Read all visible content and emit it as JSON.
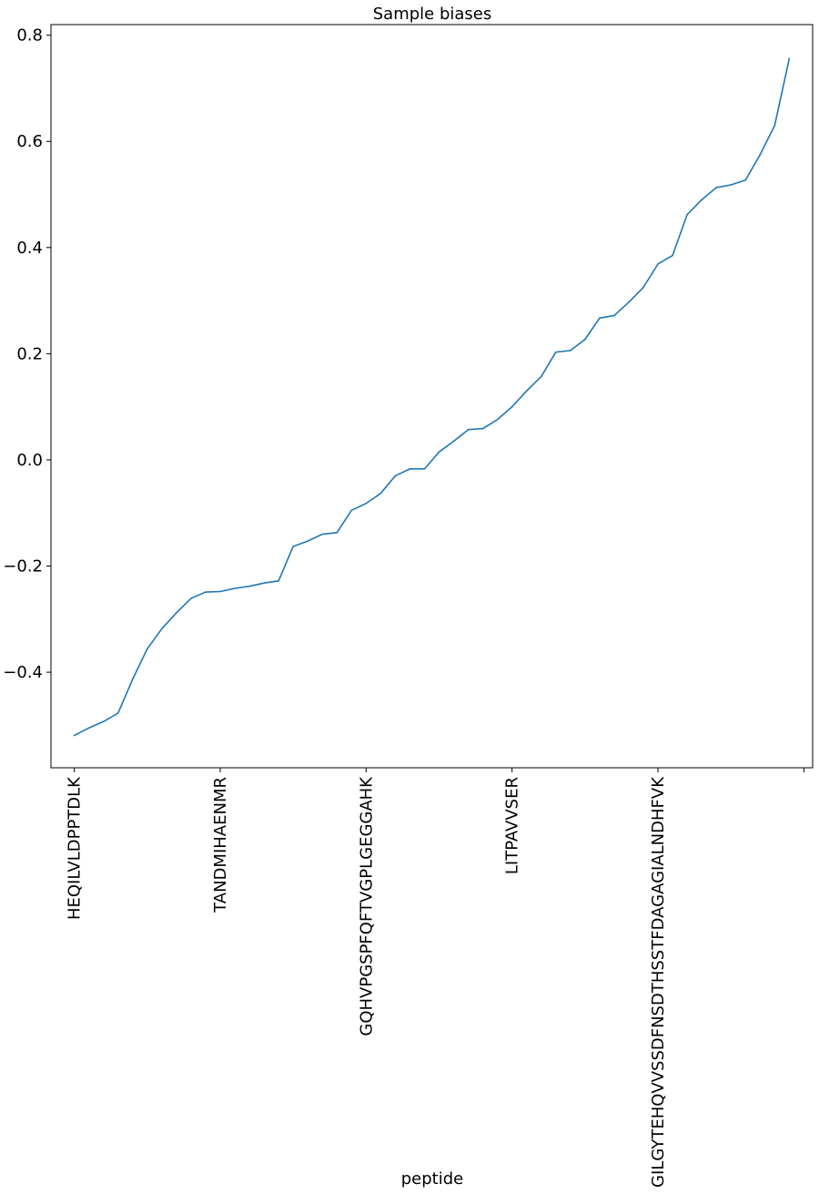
{
  "chart_data": {
    "type": "line",
    "title": "Sample biases",
    "xlabel": "peptide",
    "ylabel": "",
    "xlim": [
      -1.6,
      50.6
    ],
    "ylim": [
      -0.58,
      0.82
    ],
    "yticks": [
      -0.4,
      -0.2,
      0.0,
      0.2,
      0.4,
      0.6,
      0.8
    ],
    "ytick_labels": [
      "−0.4",
      "−0.2",
      "0.0",
      "0.2",
      "0.4",
      "0.6",
      "0.8"
    ],
    "xticks": [
      0,
      10,
      20,
      30,
      40,
      50
    ],
    "xtick_labels": [
      "HEQILVLDPPTDLK",
      "TANDMIHAENMR",
      "GQHVPGSPFQFTVGPLGEGGAHK",
      "LITPAVVSER",
      "GILGYTEHQVVSSDFNSDTHSSTFDAGAGIALNDHFVK",
      ""
    ],
    "grid": false,
    "legend": "none",
    "color": "#1f77b4",
    "series": [
      {
        "x": [
          0,
          1,
          2,
          3,
          4,
          5,
          6,
          7,
          8,
          9,
          10,
          11,
          12,
          13,
          14,
          15,
          16,
          17,
          18,
          19,
          20,
          21,
          22,
          23,
          24,
          25,
          26,
          27,
          28,
          29,
          30,
          31,
          32,
          33,
          34,
          35,
          36,
          37,
          38,
          39,
          40,
          41,
          42,
          43,
          44,
          45,
          46,
          47,
          48,
          49
        ],
        "values": [
          -0.519,
          -0.505,
          -0.493,
          -0.477,
          -0.413,
          -0.356,
          -0.318,
          -0.288,
          -0.261,
          -0.249,
          -0.248,
          -0.242,
          -0.238,
          -0.232,
          -0.228,
          -0.163,
          -0.153,
          -0.14,
          -0.137,
          -0.095,
          -0.082,
          -0.063,
          -0.03,
          -0.017,
          -0.017,
          0.015,
          0.035,
          0.057,
          0.059,
          0.076,
          0.1,
          0.13,
          0.157,
          0.203,
          0.206,
          0.227,
          0.267,
          0.272,
          0.297,
          0.325,
          0.369,
          0.385,
          0.462,
          0.49,
          0.513,
          0.518,
          0.527,
          0.575,
          0.63,
          0.756
        ]
      }
    ]
  }
}
